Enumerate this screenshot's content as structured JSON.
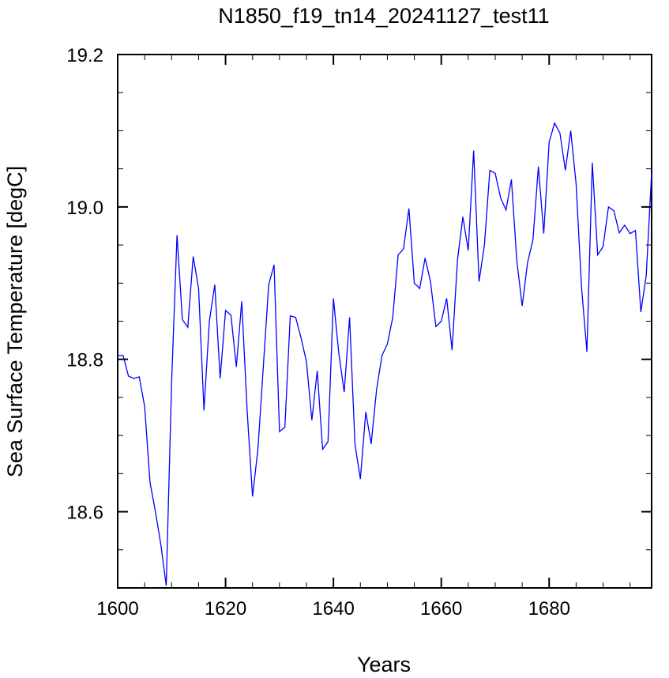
{
  "chart_data": {
    "type": "line",
    "title": "N1850_f19_tn14_20241127_test11",
    "xlabel": "Years",
    "ylabel": "Sea Surface Temperature [degC]",
    "xlim": [
      1600,
      1699
    ],
    "ylim": [
      18.5,
      19.2
    ],
    "x_ticks": [
      1600,
      1620,
      1640,
      1660,
      1680
    ],
    "y_ticks": [
      18.6,
      18.8,
      19.0,
      19.2
    ],
    "y_tick_labels": [
      "18.6",
      "18.8",
      "19.0",
      "19.2"
    ],
    "grid": false,
    "legend": "none",
    "series_color": "#0000ff",
    "x": [
      1600,
      1601,
      1602,
      1603,
      1604,
      1605,
      1606,
      1607,
      1608,
      1609,
      1610,
      1611,
      1612,
      1613,
      1614,
      1615,
      1616,
      1617,
      1618,
      1619,
      1620,
      1621,
      1622,
      1623,
      1624,
      1625,
      1626,
      1627,
      1628,
      1629,
      1630,
      1631,
      1632,
      1633,
      1634,
      1635,
      1636,
      1637,
      1638,
      1639,
      1640,
      1641,
      1642,
      1643,
      1644,
      1645,
      1646,
      1647,
      1648,
      1649,
      1650,
      1651,
      1652,
      1653,
      1654,
      1655,
      1656,
      1657,
      1658,
      1659,
      1660,
      1661,
      1662,
      1663,
      1664,
      1665,
      1666,
      1667,
      1668,
      1669,
      1670,
      1671,
      1672,
      1673,
      1674,
      1675,
      1676,
      1677,
      1678,
      1679,
      1680,
      1681,
      1682,
      1683,
      1684,
      1685,
      1686,
      1687,
      1688,
      1689,
      1690,
      1691,
      1692,
      1693,
      1694,
      1695,
      1696,
      1697,
      1698,
      1699
    ],
    "values": [
      18.805,
      18.805,
      18.778,
      18.775,
      18.777,
      18.738,
      18.638,
      18.6,
      18.557,
      18.503,
      18.77,
      18.963,
      18.852,
      18.842,
      18.935,
      18.893,
      18.733,
      18.85,
      18.898,
      18.775,
      18.864,
      18.858,
      18.79,
      18.876,
      18.733,
      18.62,
      18.682,
      18.79,
      18.898,
      18.924,
      18.705,
      18.711,
      18.857,
      18.855,
      18.828,
      18.797,
      18.72,
      18.785,
      18.682,
      18.692,
      18.88,
      18.808,
      18.757,
      18.855,
      18.688,
      18.643,
      18.731,
      18.689,
      18.76,
      18.805,
      18.82,
      18.855,
      18.937,
      18.945,
      18.998,
      18.9,
      18.893,
      18.933,
      18.902,
      18.843,
      18.85,
      18.88,
      18.812,
      18.93,
      18.987,
      18.943,
      19.074,
      18.902,
      18.95,
      19.048,
      19.044,
      19.012,
      18.996,
      19.036,
      18.93,
      18.87,
      18.927,
      18.957,
      19.053,
      18.965,
      19.085,
      19.11,
      19.097,
      19.048,
      19.1,
      19.03,
      18.895,
      18.81,
      19.058,
      18.937,
      18.948,
      19.0,
      18.995,
      18.966,
      18.976,
      18.965,
      18.969,
      18.862,
      18.91,
      19.045
    ]
  }
}
